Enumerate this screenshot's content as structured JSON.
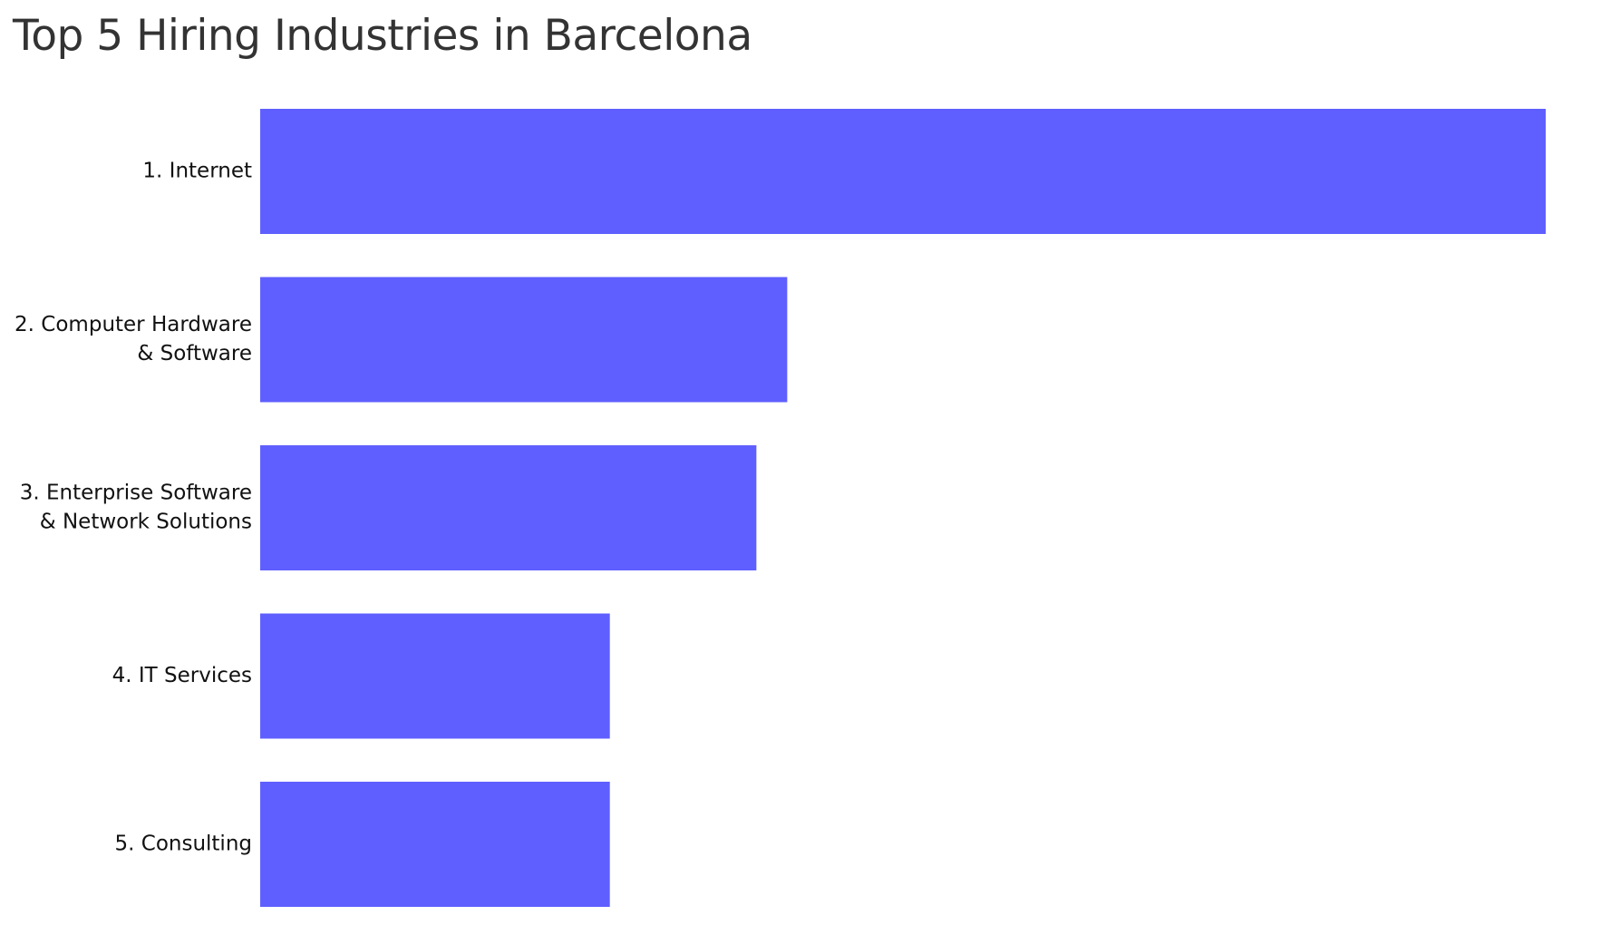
{
  "chart_data": {
    "type": "bar",
    "orientation": "horizontal",
    "title": "Top 5 Hiring Industries in Barcelona",
    "categories": [
      [
        "1. Internet"
      ],
      [
        "2. Computer Hardware",
        "& Software"
      ],
      [
        "3. Enterprise Software",
        "& Network Solutions"
      ],
      [
        "4. IT Services"
      ],
      [
        "5. Consulting"
      ]
    ],
    "values": [
      100,
      41,
      38.6,
      27.2,
      27.2
    ],
    "xlim": [
      0,
      100
    ],
    "xlabel": "",
    "ylabel": "",
    "grid": false,
    "legend": "none",
    "bar_color": "#5f5fff"
  }
}
